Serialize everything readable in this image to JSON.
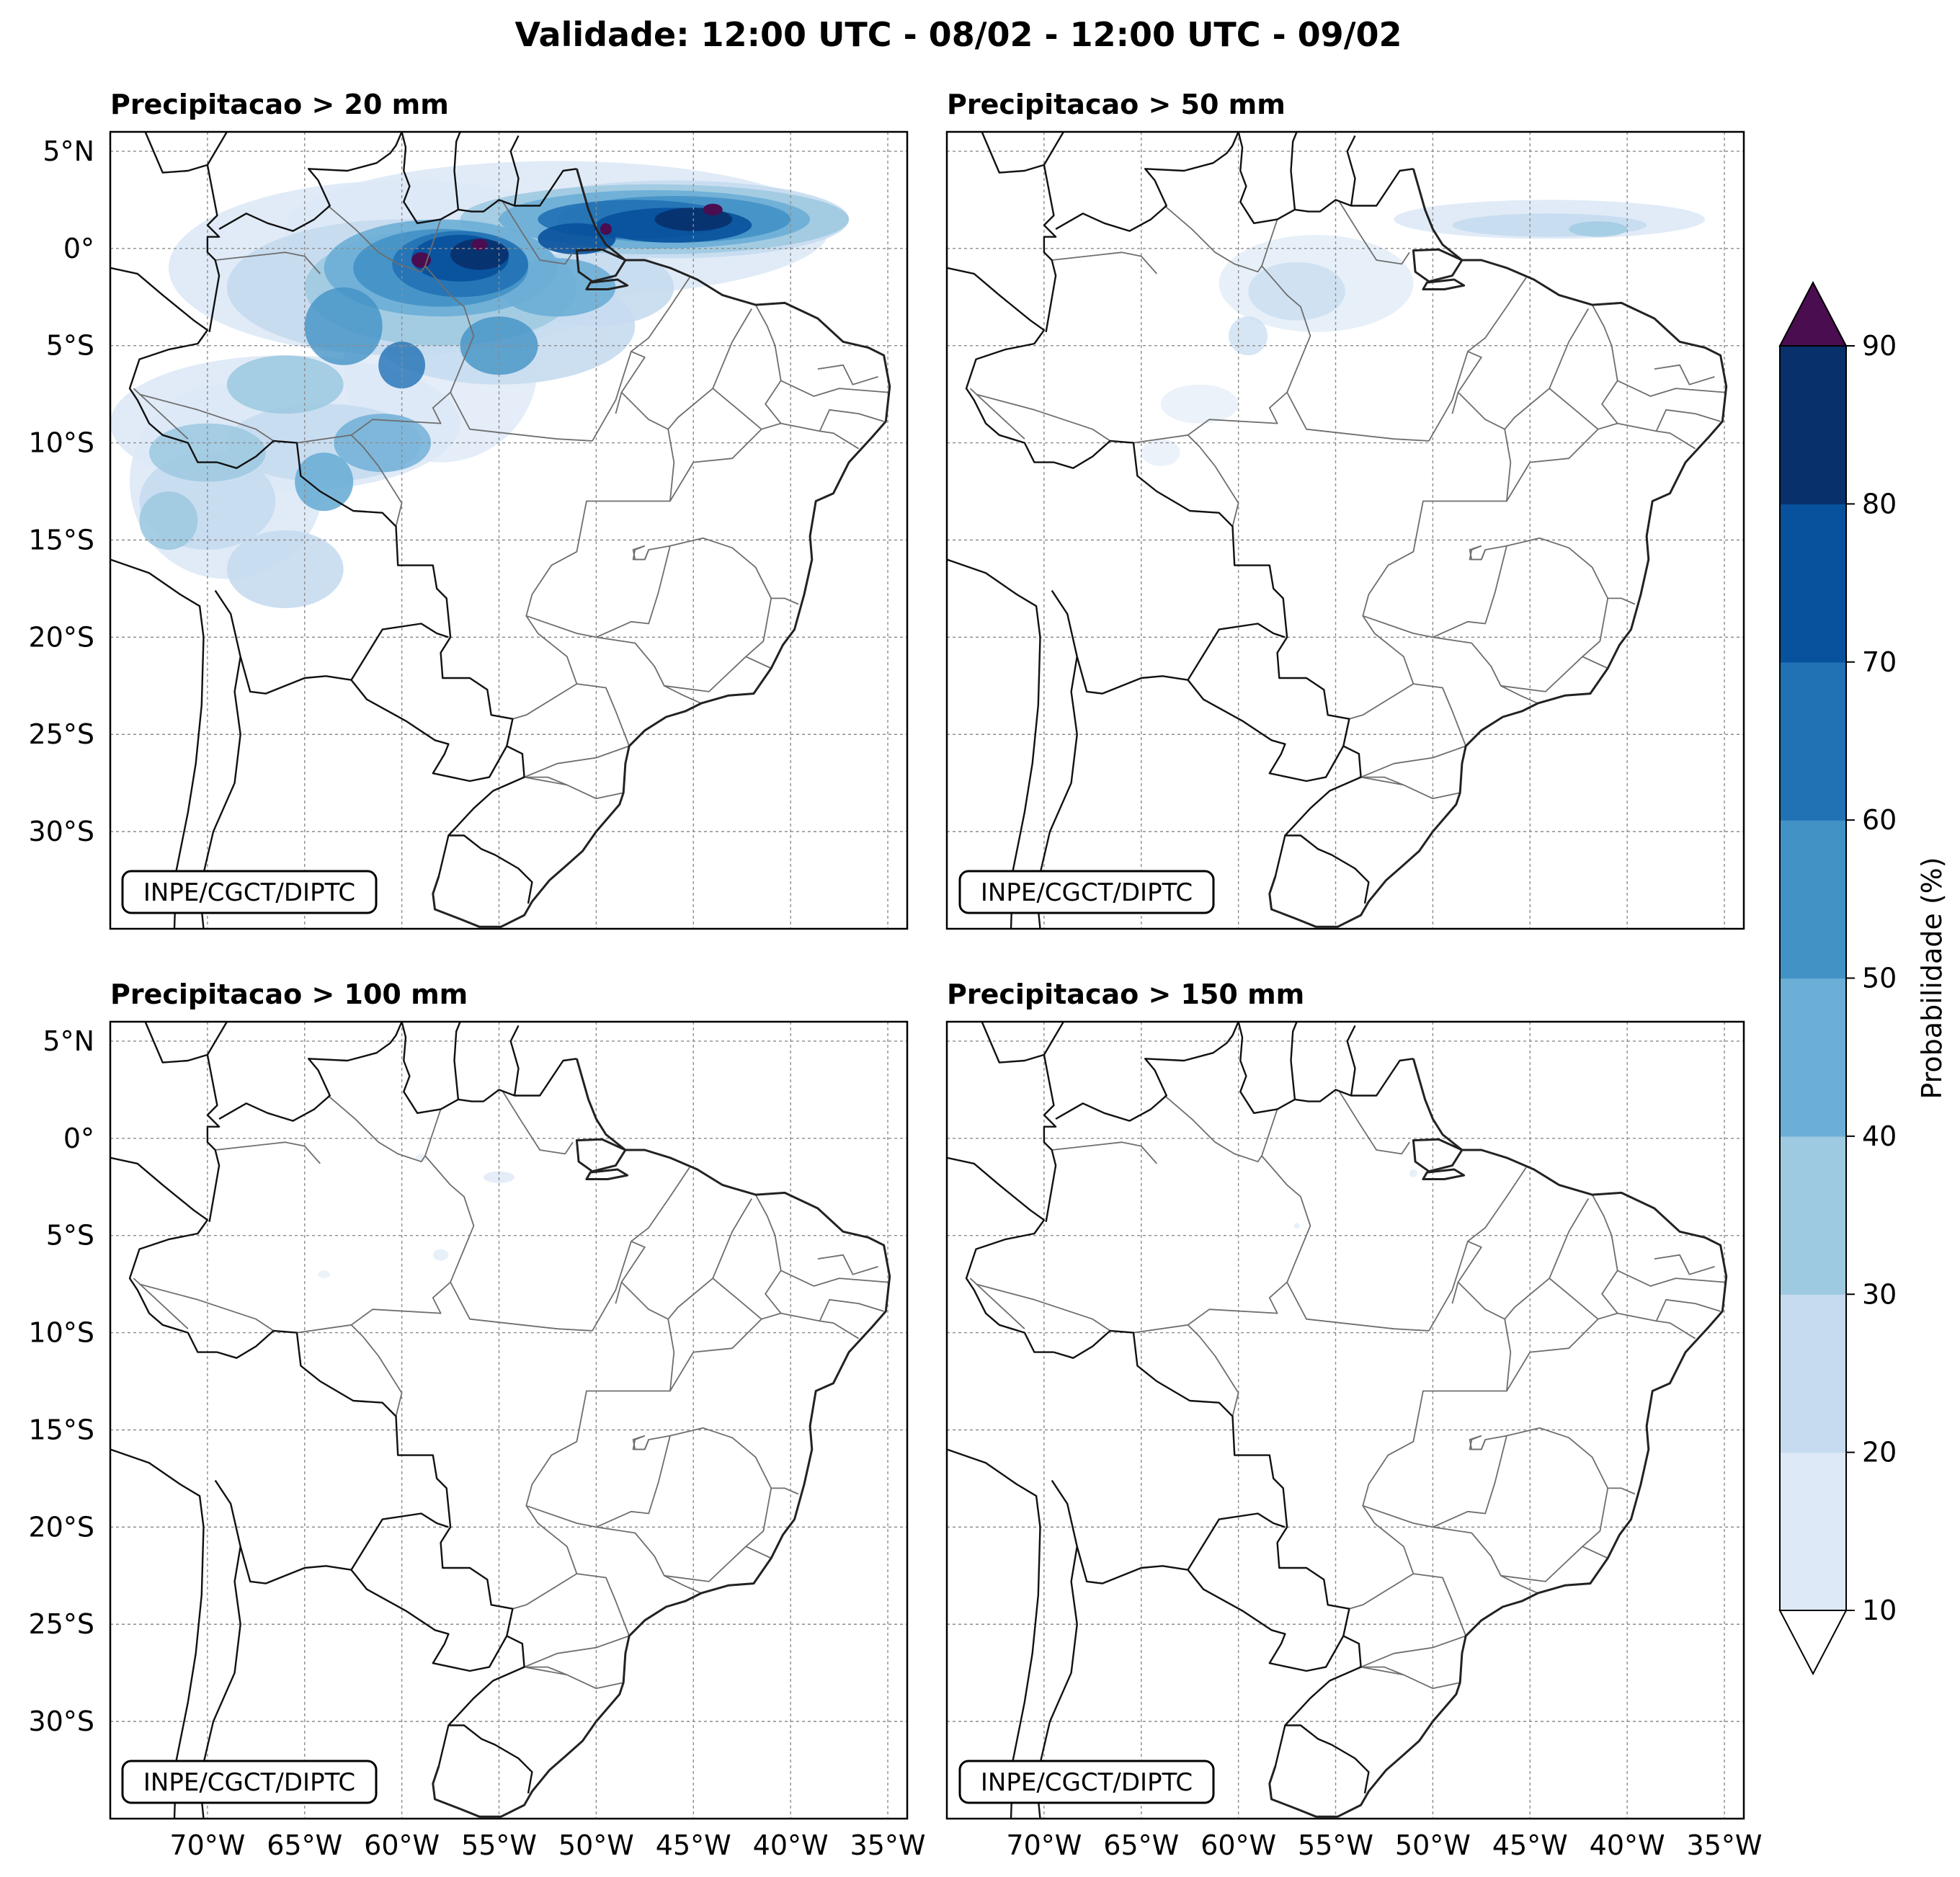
{
  "title": "Validade: 12:00 UTC - 08/02 - 12:00 UTC - 09/02",
  "credit": "INPE/CGCT/DIPTC",
  "map_extent": {
    "lon_min": -75,
    "lon_max": -34,
    "lat_min": -35,
    "lat_max": 6
  },
  "lon_ticks": [
    {
      "value": -70,
      "label": "70°W"
    },
    {
      "value": -65,
      "label": "65°W"
    },
    {
      "value": -60,
      "label": "60°W"
    },
    {
      "value": -55,
      "label": "55°W"
    },
    {
      "value": -50,
      "label": "50°W"
    },
    {
      "value": -45,
      "label": "45°W"
    },
    {
      "value": -40,
      "label": "40°W"
    },
    {
      "value": -35,
      "label": "35°W"
    }
  ],
  "lat_ticks": [
    {
      "value": 5,
      "label": "5°N"
    },
    {
      "value": 0,
      "label": "0°"
    },
    {
      "value": -5,
      "label": "5°S"
    },
    {
      "value": -10,
      "label": "10°S"
    },
    {
      "value": -15,
      "label": "15°S"
    },
    {
      "value": -20,
      "label": "20°S"
    },
    {
      "value": -25,
      "label": "25°S"
    },
    {
      "value": -30,
      "label": "30°S"
    }
  ],
  "panels": [
    {
      "title": "Precipitacao > 20 mm",
      "threshold_mm": 20
    },
    {
      "title": "Precipitacao > 50 mm",
      "threshold_mm": 50
    },
    {
      "title": "Precipitacao > 100 mm",
      "threshold_mm": 100
    },
    {
      "title": "Precipitacao > 150 mm",
      "threshold_mm": 150
    }
  ],
  "colorbar": {
    "label": "Probabilidade (%)",
    "levels": [
      10,
      20,
      30,
      40,
      50,
      60,
      70,
      80,
      90
    ],
    "colors": [
      "#dde9f6",
      "#c6dbef",
      "#9ecae1",
      "#6baed6",
      "#4292c6",
      "#2171b5",
      "#08519c",
      "#08306b"
    ],
    "over_color": "#4a0d4f",
    "under_color": "#ffffff"
  }
}
